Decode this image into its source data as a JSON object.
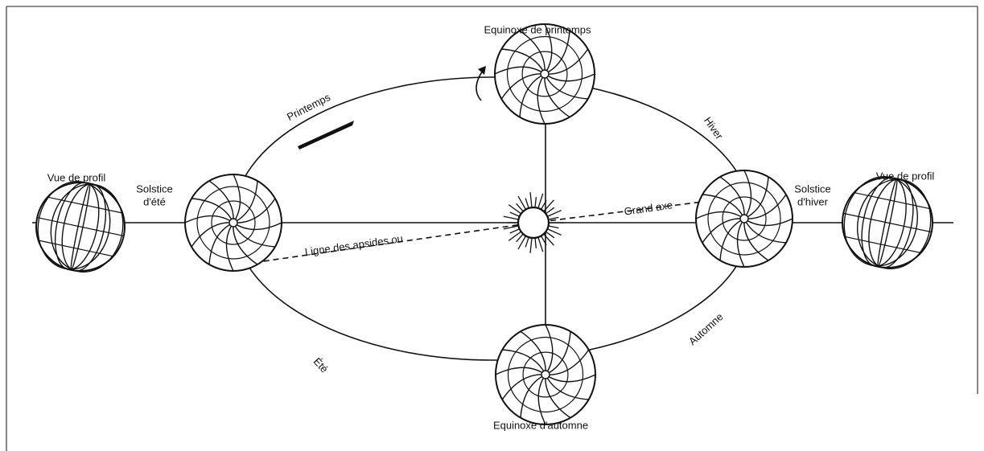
{
  "equinox_spring": "Equinoxe de printemps",
  "equinox_autumn": "Equinoxe d'automne",
  "season_spring": "Printemps",
  "season_winter": "Hiver",
  "season_summer": "Été",
  "season_autumn": "Automne",
  "profile_left": "Vue de profil",
  "profile_right": "Vue de profil",
  "solstice_summer": [
    "Solstice",
    "d'été"
  ],
  "solstice_winter": [
    "Solstice",
    "d'hiver"
  ],
  "major_axis": "Grand axe",
  "apsides_line": "Ligne des apsides ou"
}
